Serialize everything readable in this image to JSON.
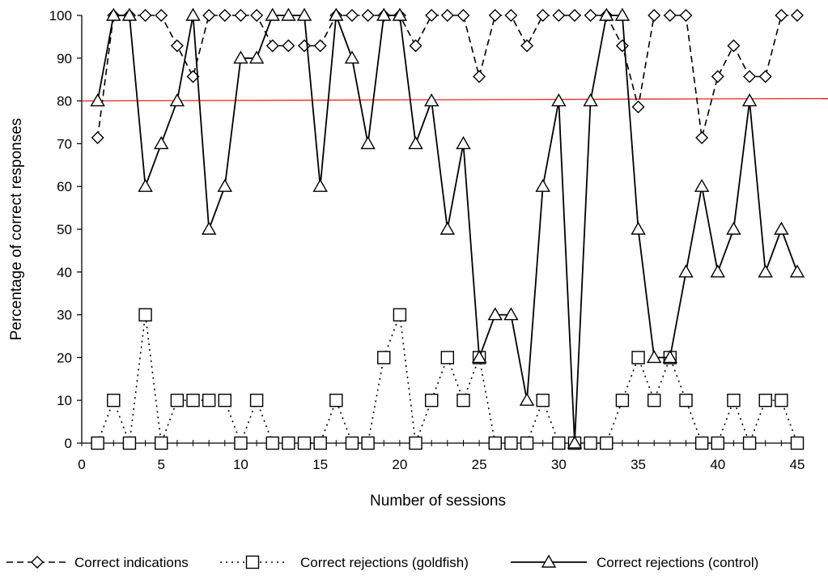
{
  "chart_data": {
    "type": "line",
    "title": "",
    "xlabel": "Number of sessions",
    "ylabel": "Percentage of correct responses",
    "xlim": [
      0,
      45
    ],
    "ylim": [
      0,
      100
    ],
    "x_ticks": [
      0,
      5,
      10,
      15,
      20,
      25,
      30,
      35,
      40,
      45
    ],
    "y_ticks": [
      0,
      10,
      20,
      30,
      40,
      50,
      60,
      70,
      80,
      90,
      100
    ],
    "grid": false,
    "legend_position": "bottom",
    "reference_line": {
      "y": 80,
      "color": "#e8241c"
    },
    "x": [
      1,
      2,
      3,
      4,
      5,
      6,
      7,
      8,
      9,
      10,
      11,
      12,
      13,
      14,
      15,
      16,
      17,
      18,
      19,
      20,
      21,
      22,
      23,
      24,
      25,
      26,
      27,
      28,
      29,
      30,
      31,
      32,
      33,
      34,
      35,
      36,
      37,
      38,
      39,
      40,
      41,
      42,
      43,
      44,
      45
    ],
    "series": [
      {
        "name": "Correct indications",
        "line_style": "dashed",
        "marker": "diamond",
        "values": [
          71.4,
          100,
          100,
          100,
          100,
          92.9,
          85.7,
          100,
          100,
          100,
          100,
          92.9,
          92.9,
          92.9,
          92.9,
          100,
          100,
          100,
          100,
          100,
          92.9,
          100,
          100,
          100,
          85.7,
          100,
          100,
          92.9,
          100,
          100,
          100,
          100,
          100,
          92.9,
          78.6,
          100,
          100,
          100,
          71.4,
          85.7,
          92.9,
          85.7,
          85.7,
          100,
          100
        ]
      },
      {
        "name": "Correct rejections (goldfish)",
        "line_style": "dotted",
        "marker": "square",
        "values": [
          0,
          10,
          0,
          30,
          0,
          10,
          10,
          10,
          10,
          0,
          10,
          0,
          0,
          0,
          0,
          10,
          0,
          0,
          20,
          30,
          0,
          10,
          20,
          10,
          20,
          0,
          0,
          0,
          10,
          0,
          0,
          0,
          0,
          10,
          20,
          10,
          20,
          10,
          0,
          0,
          10,
          0,
          10,
          10,
          0
        ]
      },
      {
        "name": "Correct rejections (control)",
        "line_style": "solid",
        "marker": "triangle",
        "values": [
          80,
          100,
          100,
          60,
          70,
          80,
          100,
          50,
          60,
          90,
          90,
          100,
          100,
          100,
          60,
          100,
          90,
          70,
          100,
          100,
          70,
          80,
          50,
          70,
          20,
          30,
          30,
          10,
          60,
          80,
          0,
          80,
          100,
          100,
          50,
          20,
          20,
          40,
          60,
          40,
          50,
          80,
          40,
          50,
          40
        ]
      }
    ]
  }
}
